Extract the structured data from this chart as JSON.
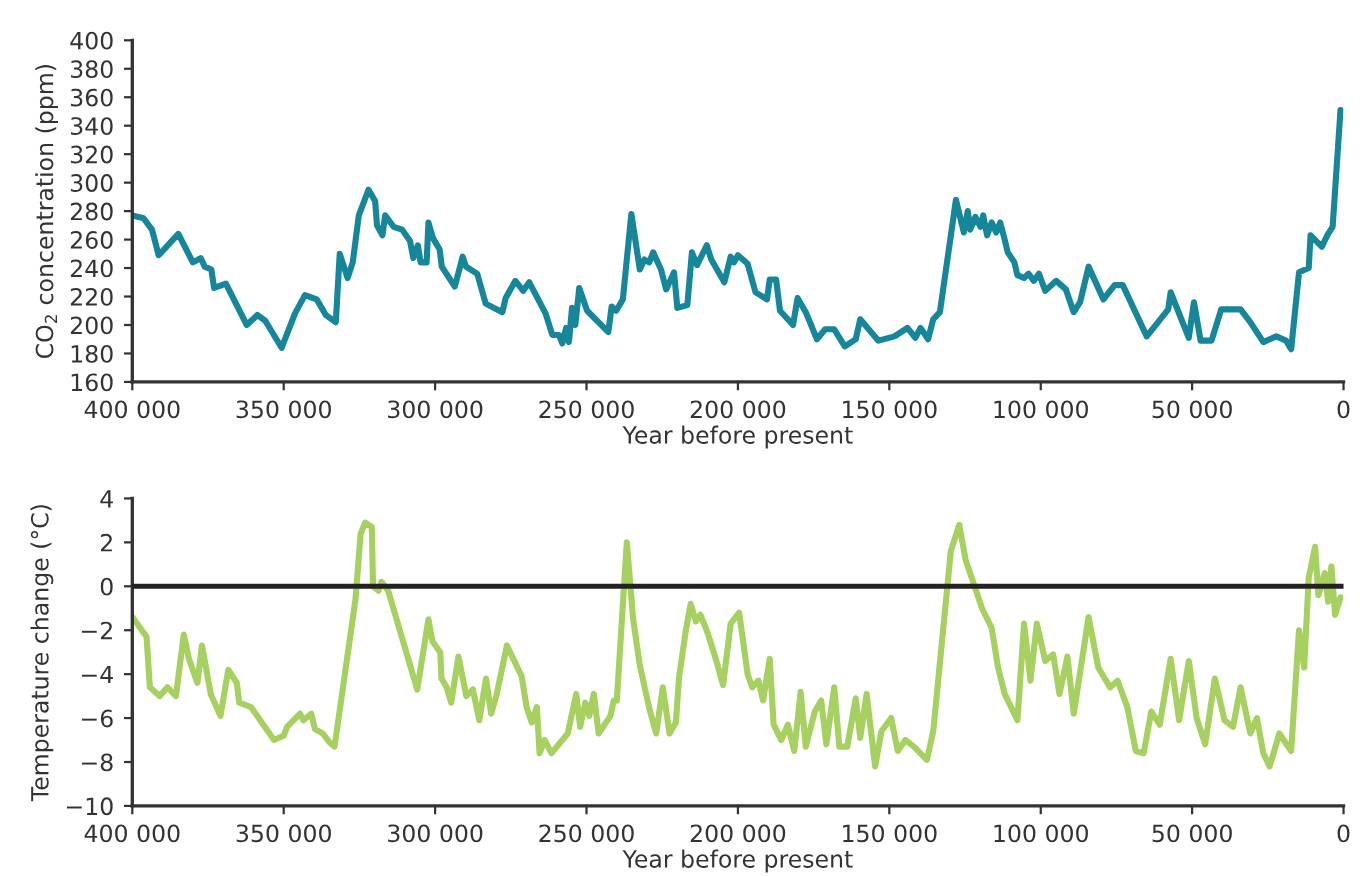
{
  "chart_data": [
    {
      "type": "line",
      "xlabel": "Year before present",
      "ylabel": "CO$_{2}$ concentration (ppm)",
      "xlim": [
        400000,
        0
      ],
      "ylim": [
        160,
        400
      ],
      "xticks": [
        {
          "value": 400000,
          "label": "400 000"
        },
        {
          "value": 350000,
          "label": "350 000"
        },
        {
          "value": 300000,
          "label": "300 000"
        },
        {
          "value": 250000,
          "label": "250 000"
        },
        {
          "value": 200000,
          "label": "200 000"
        },
        {
          "value": 150000,
          "label": "150 000"
        },
        {
          "value": 100000,
          "label": "100 000"
        },
        {
          "value": 50000,
          "label": "50 000"
        },
        {
          "value": 0,
          "label": "0"
        }
      ],
      "yticks": [
        160,
        180,
        200,
        220,
        240,
        260,
        280,
        300,
        320,
        340,
        360,
        380,
        400
      ],
      "series": [
        {
          "color": "#16879a",
          "x": [
            400000,
            396300,
            393500,
            391300,
            384800,
            380000,
            377400,
            376100,
            373900,
            373000,
            369100,
            362200,
            358700,
            356100,
            350700,
            346300,
            343000,
            339100,
            336100,
            332800,
            331500,
            328900,
            327200,
            325200,
            322000,
            319800,
            319200,
            317400,
            316500,
            313700,
            310900,
            308300,
            307200,
            305700,
            304800,
            302800,
            302200,
            300700,
            298500,
            297800,
            293500,
            290900,
            289800,
            286100,
            283300,
            277800,
            276700,
            273500,
            270900,
            268900,
            263500,
            261300,
            259100,
            258000,
            256700,
            255800,
            254800,
            253700,
            252400,
            249800,
            242800,
            241700,
            240200,
            238000,
            235200,
            232400,
            230900,
            229300,
            228000,
            225400,
            223700,
            221100,
            220000,
            216700,
            215200,
            213500,
            210300,
            208800,
            204500,
            202400,
            201300,
            200000,
            196800,
            194200,
            190400,
            189500,
            187400,
            186100,
            181800,
            180300,
            177600,
            173900,
            171200,
            168200,
            164700,
            161100,
            159600,
            153600,
            148300,
            144000,
            141400,
            139700,
            137200,
            135500,
            133300,
            128000,
            125400,
            124100,
            123300,
            121600,
            119900,
            119000,
            117700,
            116200,
            114700,
            113400,
            111900,
            110900,
            108700,
            107700,
            105500,
            104000,
            102300,
            100600,
            98500,
            94900,
            91700,
            89100,
            87000,
            84200,
            79300,
            75600,
            72900,
            65000,
            57900,
            57100,
            51100,
            49400,
            47200,
            43600,
            40400,
            34000,
            30800,
            26500,
            22200,
            19000,
            17300,
            14700,
            11500,
            10900,
            7200,
            5100,
            3600,
            1000
          ],
          "values": [
            277,
            275,
            267,
            249,
            264,
            244,
            247,
            241,
            239,
            226,
            229,
            200,
            207,
            203,
            184,
            208,
            221,
            218,
            207,
            202,
            250,
            233,
            244,
            277,
            295,
            287,
            270,
            263,
            277,
            269,
            267,
            259,
            247,
            256,
            244,
            244,
            272,
            261,
            253,
            241,
            227,
            248,
            241,
            236,
            215,
            209,
            219,
            231,
            224,
            230,
            208,
            193,
            193,
            187,
            198,
            188,
            212,
            200,
            226,
            210,
            195,
            213,
            210,
            218,
            278,
            239,
            246,
            244,
            251,
            239,
            225,
            237,
            212,
            214,
            251,
            242,
            256,
            246,
            230,
            248,
            244,
            249,
            243,
            223,
            218,
            232,
            232,
            210,
            200,
            219,
            209,
            190,
            197,
            197,
            185,
            190,
            204,
            189,
            192,
            198,
            191,
            198,
            190,
            204,
            209,
            288,
            265,
            280,
            267,
            276,
            269,
            277,
            263,
            272,
            265,
            272,
            260,
            251,
            244,
            235,
            233,
            236,
            231,
            236,
            224,
            231,
            225,
            209,
            216,
            241,
            218,
            228,
            228,
            192,
            211,
            223,
            191,
            216,
            189,
            189,
            211,
            211,
            202,
            188,
            192,
            189,
            183,
            237,
            240,
            263,
            255,
            264,
            269,
            351
          ]
        }
      ]
    },
    {
      "type": "line",
      "xlabel": "Year before present",
      "ylabel": "Temperature change (°C)",
      "xlim": [
        400000,
        0
      ],
      "ylim": [
        -10,
        4
      ],
      "xticks": [
        {
          "value": 400000,
          "label": "400 000"
        },
        {
          "value": 350000,
          "label": "350 000"
        },
        {
          "value": 300000,
          "label": "300 000"
        },
        {
          "value": 250000,
          "label": "250 000"
        },
        {
          "value": 200000,
          "label": "200 000"
        },
        {
          "value": 150000,
          "label": "150 000"
        },
        {
          "value": 100000,
          "label": "100 000"
        },
        {
          "value": 50000,
          "label": "50 000"
        },
        {
          "value": 0,
          "label": "0"
        }
      ],
      "yticks": [
        {
          "value": -10,
          "label": "−10"
        },
        {
          "value": -8,
          "label": "−8"
        },
        {
          "value": -6,
          "label": "−6"
        },
        {
          "value": -4,
          "label": "−4"
        },
        {
          "value": -2,
          "label": "−2"
        },
        0,
        2,
        4
      ],
      "ref_lines": [
        {
          "axis": "y",
          "value": 0,
          "color": "#222222"
        }
      ],
      "series": [
        {
          "color": "#a6d05f",
          "x": [
            400000,
            395300,
            394200,
            391000,
            388400,
            385600,
            383000,
            381300,
            378500,
            377000,
            374100,
            370900,
            368300,
            365500,
            364700,
            360800,
            353200,
            350000,
            348900,
            344600,
            343500,
            340900,
            339700,
            337100,
            334900,
            333200,
            326300,
            324600,
            323100,
            320900,
            320500,
            318700,
            317700,
            315500,
            305900,
            302200,
            300900,
            298300,
            297900,
            296200,
            294700,
            292300,
            289700,
            287500,
            285400,
            283200,
            281500,
            279800,
            276300,
            271400,
            269800,
            268100,
            266400,
            265500,
            263800,
            261600,
            256200,
            253400,
            252100,
            250400,
            249100,
            247600,
            246000,
            242100,
            241000,
            240000,
            236700,
            234600,
            232400,
            229200,
            227000,
            224800,
            222600,
            220500,
            219400,
            217200,
            215600,
            213900,
            212400,
            210300,
            207100,
            204900,
            202400,
            199600,
            196800,
            195300,
            193200,
            191700,
            189500,
            188200,
            185700,
            183500,
            181400,
            179300,
            177600,
            174600,
            172500,
            170800,
            168200,
            166500,
            163900,
            161100,
            159600,
            157500,
            154700,
            152600,
            149400,
            147200,
            144700,
            141900,
            137600,
            135500,
            129700,
            126900,
            124800,
            121600,
            119400,
            116200,
            114100,
            111900,
            109800,
            107700,
            105500,
            103400,
            101300,
            98500,
            95900,
            93800,
            91200,
            89100,
            84200,
            81000,
            77100,
            74600,
            71400,
            68600,
            66000,
            63500,
            60700,
            57100,
            54300,
            51100,
            48500,
            45700,
            42500,
            39300,
            36500,
            34000,
            30800,
            28600,
            26500,
            24400,
            21200,
            17300,
            14700,
            13000,
            11500,
            9400,
            8300,
            6200,
            5100,
            4000,
            2800,
            1000
          ],
          "values": [
            -1.4,
            -2.3,
            -4.6,
            -5.0,
            -4.6,
            -5.0,
            -2.2,
            -3.3,
            -4.4,
            -2.7,
            -4.9,
            -5.9,
            -3.8,
            -4.4,
            -5.3,
            -5.5,
            -7.0,
            -6.8,
            -6.4,
            -5.8,
            -6.1,
            -5.8,
            -6.5,
            -6.7,
            -7.1,
            -7.3,
            -0.6,
            2.4,
            2.9,
            2.7,
            0.0,
            -0.2,
            0.2,
            -0.2,
            -4.7,
            -1.5,
            -2.5,
            -3.0,
            -4.2,
            -4.6,
            -5.3,
            -3.2,
            -5.0,
            -4.7,
            -6.1,
            -4.2,
            -5.8,
            -5.0,
            -2.7,
            -4.1,
            -5.5,
            -6.2,
            -5.5,
            -7.6,
            -7.0,
            -7.6,
            -6.7,
            -4.9,
            -6.4,
            -5.3,
            -5.9,
            -4.9,
            -6.7,
            -5.9,
            -5.2,
            -5.2,
            2.0,
            -1.5,
            -3.6,
            -5.6,
            -6.7,
            -4.6,
            -6.7,
            -6.2,
            -4.1,
            -2.0,
            -0.8,
            -1.6,
            -1.3,
            -2.0,
            -3.4,
            -4.5,
            -1.7,
            -1.2,
            -4.0,
            -4.6,
            -4.3,
            -5.2,
            -3.3,
            -6.3,
            -7.0,
            -6.3,
            -7.5,
            -4.8,
            -7.3,
            -5.7,
            -5.2,
            -7.2,
            -4.6,
            -7.3,
            -7.3,
            -5.1,
            -6.9,
            -4.9,
            -8.2,
            -6.6,
            -6.0,
            -7.5,
            -7.0,
            -7.3,
            -7.9,
            -6.6,
            1.6,
            2.8,
            1.2,
            -0.1,
            -1.0,
            -1.9,
            -3.7,
            -4.9,
            -5.5,
            -6.1,
            -1.7,
            -4.3,
            -1.7,
            -3.4,
            -3.1,
            -4.9,
            -3.2,
            -5.8,
            -1.4,
            -3.7,
            -4.6,
            -4.3,
            -5.5,
            -7.5,
            -7.6,
            -5.7,
            -6.3,
            -3.3,
            -6.1,
            -3.4,
            -6.0,
            -7.2,
            -4.2,
            -6.1,
            -6.4,
            -4.6,
            -6.7,
            -6.0,
            -7.6,
            -8.2,
            -6.7,
            -7.5,
            -2.0,
            -3.7,
            0.4,
            1.8,
            -0.4,
            0.6,
            -0.7,
            0.9,
            -1.3,
            -0.5
          ]
        }
      ]
    }
  ]
}
